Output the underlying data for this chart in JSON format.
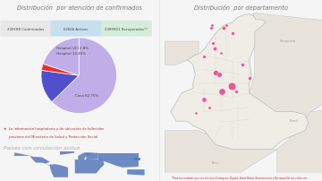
{
  "title_left": "Distribución  por atención de confirmados",
  "title_right": "Distribución  por departamento",
  "stats_labels": [
    "249188 Confirmados",
    "62668 Activos",
    "2380901 Recuperados**"
  ],
  "stats_colors": [
    "#e8e8e8",
    "#c8dff0",
    "#d4ecda"
  ],
  "pie_vals": [
    62.75,
    14.45,
    2.8,
    20.0
  ],
  "pie_colors": [
    "#c0aee8",
    "#5050cc",
    "#e83030",
    "#c0aee8"
  ],
  "pie_startangle": 90,
  "pie_label_casa": "Casa 62.75%",
  "pie_label_hosp": "Hospital 14.45%",
  "pie_label_uci": "Hospital UCI 2.8%",
  "note_star_color": "#cc2222",
  "note_text1": "★  La información hospitalaria y de ubicación de fallecidos",
  "note_text2": "     proviene del Ministerio de Salud y Protección Social",
  "world_title": "Países con circulación activa",
  "world_land_color": "#5577bb",
  "world_sea_color": "#e8e8e8",
  "world_bg": "#e0e8f0",
  "colombia_sea": "#b8d4e8",
  "colombia_land": "#f0ede6",
  "colombia_border": "#bbbbbb",
  "colombia_neighbor": "#e8e4dc",
  "dots_color": "#e8257a",
  "dots_alpha": 0.75,
  "colombia_dots": [
    {
      "lon": -75.5,
      "lat": 6.2,
      "size": 18
    },
    {
      "lon": -74.08,
      "lat": 4.71,
      "size": 38
    },
    {
      "lon": -76.5,
      "lat": 3.35,
      "size": 14
    },
    {
      "lon": -74.9,
      "lat": 4.15,
      "size": 28
    },
    {
      "lon": -73.1,
      "lat": 7.07,
      "size": 8
    },
    {
      "lon": -75.56,
      "lat": 8.75,
      "size": 10
    },
    {
      "lon": -74.79,
      "lat": 10.96,
      "size": 10
    },
    {
      "lon": -72.5,
      "lat": 5.55,
      "size": 8
    },
    {
      "lon": -75.2,
      "lat": 5.95,
      "size": 16
    },
    {
      "lon": -74.0,
      "lat": 10.4,
      "size": 8
    },
    {
      "lon": -75.7,
      "lat": 9.3,
      "size": 7
    },
    {
      "lon": -75.88,
      "lat": 10.98,
      "size": 7
    },
    {
      "lon": -73.62,
      "lat": 4.15,
      "size": 7
    },
    {
      "lon": -76.05,
      "lat": 2.44,
      "size": 6
    },
    {
      "lon": -77.28,
      "lat": 1.83,
      "size": 5
    },
    {
      "lon": -75.82,
      "lat": 11.24,
      "size": 6
    },
    {
      "lon": -76.53,
      "lat": 7.88,
      "size": 7
    },
    {
      "lon": -74.53,
      "lat": 11.24,
      "size": 6
    },
    {
      "lon": -75.03,
      "lat": 8.31,
      "size": 5
    }
  ],
  "footnote": "*Para las ciudades que son distritos (Cartagena, Bogotá, Santa Marta, Buenaventura y Barranquilla) sus cifras son...",
  "bg_color": "#f5f5f5"
}
